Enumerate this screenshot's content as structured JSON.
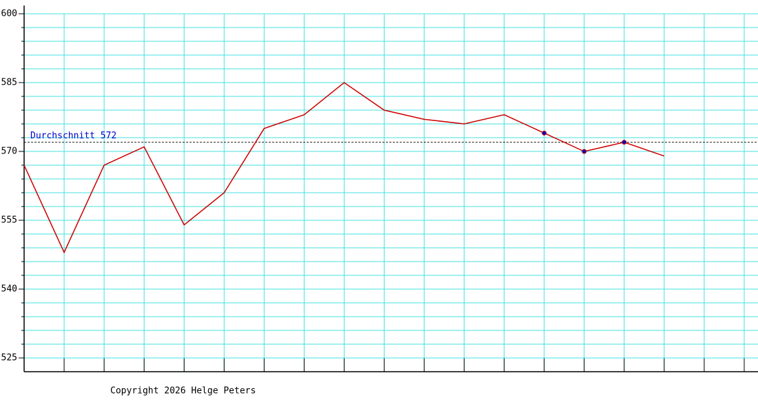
{
  "chart_data": {
    "type": "line",
    "categories": [
      null,
      null,
      null,
      null,
      null,
      null,
      null,
      null,
      null,
      null,
      null,
      null,
      null,
      null,
      null,
      null,
      null,
      null,
      null
    ],
    "values": [
      567,
      548,
      567,
      571,
      554,
      561,
      575,
      578,
      585,
      579,
      577,
      576,
      578,
      574,
      570,
      572,
      569,
      null,
      null
    ],
    "highlight_values": [
      null,
      null,
      null,
      null,
      null,
      null,
      null,
      null,
      null,
      null,
      null,
      null,
      null,
      574,
      570,
      572,
      null,
      null,
      null
    ],
    "color": "#cc0000",
    "highlight_color": "#0000cc",
    "average": 572,
    "average_label": "Durchschnitt 572",
    "average_color": "#0000cc",
    "ylim": [
      522,
      600
    ],
    "yticks": [
      525,
      540,
      555,
      570,
      585,
      600
    ],
    "minor_yticks": [
      528,
      531,
      534,
      537,
      543,
      546,
      549,
      552,
      558,
      561,
      564,
      567,
      573,
      576,
      579,
      582,
      588,
      591,
      594,
      597
    ],
    "grid": true,
    "grid_color": "#44e0e0",
    "footer": "Copyright 2026 Helge Peters"
  }
}
